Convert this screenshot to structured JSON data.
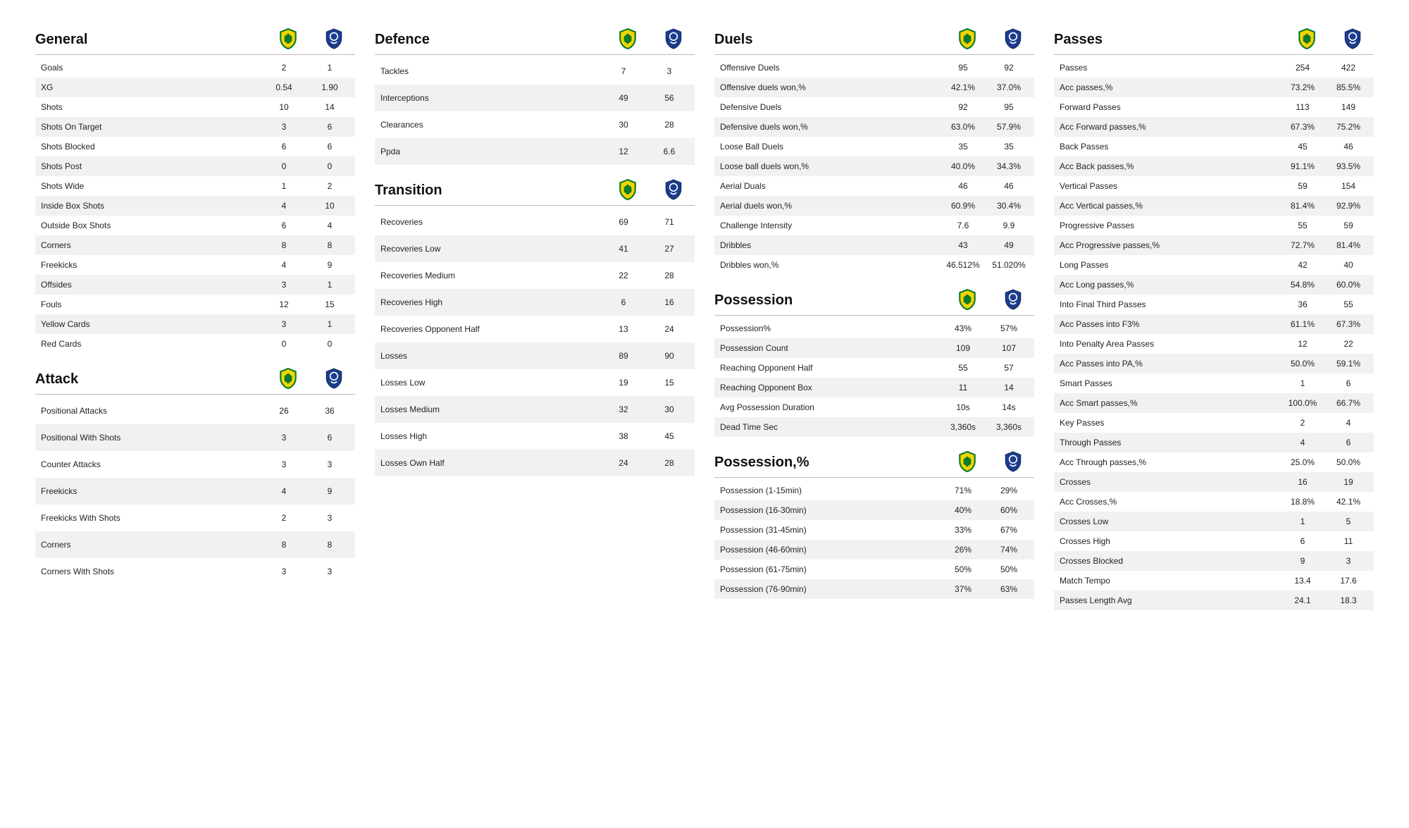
{
  "teams": {
    "home": {
      "name": "Norwich",
      "colors": [
        "#f5d400",
        "#0a7a2c"
      ]
    },
    "away": {
      "name": "Everton",
      "colors": [
        "#1b3d8f",
        "#ffffff"
      ]
    }
  },
  "sections": {
    "general": {
      "title": "General",
      "rows": [
        {
          "label": "Goals",
          "home": "2",
          "away": "1"
        },
        {
          "label": "XG",
          "home": "0.54",
          "away": "1.90"
        },
        {
          "label": "Shots",
          "home": "10",
          "away": "14"
        },
        {
          "label": "Shots On Target",
          "home": "3",
          "away": "6"
        },
        {
          "label": "Shots Blocked",
          "home": "6",
          "away": "6"
        },
        {
          "label": "Shots Post",
          "home": "0",
          "away": "0"
        },
        {
          "label": "Shots Wide",
          "home": "1",
          "away": "2"
        },
        {
          "label": "Inside Box Shots",
          "home": "4",
          "away": "10"
        },
        {
          "label": "Outside Box Shots",
          "home": "6",
          "away": "4"
        },
        {
          "label": "Corners",
          "home": "8",
          "away": "8"
        },
        {
          "label": "Freekicks",
          "home": "4",
          "away": "9"
        },
        {
          "label": "Offsides",
          "home": "3",
          "away": "1"
        },
        {
          "label": "Fouls",
          "home": "12",
          "away": "15"
        },
        {
          "label": "Yellow Cards",
          "home": "3",
          "away": "1"
        },
        {
          "label": "Red Cards",
          "home": "0",
          "away": "0"
        }
      ]
    },
    "attack": {
      "title": "Attack",
      "rows": [
        {
          "label": "Positional Attacks",
          "home": "26",
          "away": "36"
        },
        {
          "label": "Positional With Shots",
          "home": "3",
          "away": "6"
        },
        {
          "label": "Counter Attacks",
          "home": "3",
          "away": "3"
        },
        {
          "label": "Freekicks",
          "home": "4",
          "away": "9"
        },
        {
          "label": "Freekicks With Shots",
          "home": "2",
          "away": "3"
        },
        {
          "label": "Corners",
          "home": "8",
          "away": "8"
        },
        {
          "label": "Corners With Shots",
          "home": "3",
          "away": "3"
        }
      ]
    },
    "defence": {
      "title": "Defence",
      "rows": [
        {
          "label": "Tackles",
          "home": "7",
          "away": "3"
        },
        {
          "label": "Interceptions",
          "home": "49",
          "away": "56"
        },
        {
          "label": "Clearances",
          "home": "30",
          "away": "28"
        },
        {
          "label": "Ppda",
          "home": "12",
          "away": "6.6"
        }
      ]
    },
    "transition": {
      "title": "Transition",
      "rows": [
        {
          "label": "Recoveries",
          "home": "69",
          "away": "71"
        },
        {
          "label": "Recoveries Low",
          "home": "41",
          "away": "27"
        },
        {
          "label": "Recoveries Medium",
          "home": "22",
          "away": "28"
        },
        {
          "label": "Recoveries High",
          "home": "6",
          "away": "16"
        },
        {
          "label": "Recoveries Opponent Half",
          "home": "13",
          "away": "24"
        },
        {
          "label": "Losses",
          "home": "89",
          "away": "90"
        },
        {
          "label": "Losses Low",
          "home": "19",
          "away": "15"
        },
        {
          "label": "Losses Medium",
          "home": "32",
          "away": "30"
        },
        {
          "label": "Losses High",
          "home": "38",
          "away": "45"
        },
        {
          "label": "Losses Own Half",
          "home": "24",
          "away": "28"
        }
      ]
    },
    "duels": {
      "title": "Duels",
      "rows": [
        {
          "label": "Offensive Duels",
          "home": "95",
          "away": "92"
        },
        {
          "label": "Offensive duels won,%",
          "home": "42.1%",
          "away": "37.0%"
        },
        {
          "label": "Defensive Duels",
          "home": "92",
          "away": "95"
        },
        {
          "label": "Defensive duels won,%",
          "home": "63.0%",
          "away": "57.9%"
        },
        {
          "label": "Loose Ball Duels",
          "home": "35",
          "away": "35"
        },
        {
          "label": "Loose ball duels won,%",
          "home": "40.0%",
          "away": "34.3%"
        },
        {
          "label": "Aerial Duals",
          "home": "46",
          "away": "46"
        },
        {
          "label": "Aerial duels won,%",
          "home": "60.9%",
          "away": "30.4%"
        },
        {
          "label": "Challenge Intensity",
          "home": "7.6",
          "away": "9.9"
        },
        {
          "label": "Dribbles",
          "home": "43",
          "away": "49"
        },
        {
          "label": "Dribbles won,%",
          "home": "46.512%",
          "away": "51.020%"
        }
      ]
    },
    "possession": {
      "title": "Possession",
      "rows": [
        {
          "label": "Possession%",
          "home": "43%",
          "away": "57%"
        },
        {
          "label": "Possession Count",
          "home": "109",
          "away": "107"
        },
        {
          "label": "Reaching Opponent Half",
          "home": "55",
          "away": "57"
        },
        {
          "label": "Reaching Opponent Box",
          "home": "11",
          "away": "14"
        },
        {
          "label": "Avg Possession Duration",
          "home": "10s",
          "away": "14s"
        },
        {
          "label": "Dead Time Sec",
          "home": "3,360s",
          "away": "3,360s"
        }
      ]
    },
    "possession_pct": {
      "title": "Possession,%",
      "rows": [
        {
          "label": "Possession (1-15min)",
          "home": "71%",
          "away": "29%"
        },
        {
          "label": "Possession (16-30min)",
          "home": "40%",
          "away": "60%"
        },
        {
          "label": "Possession (31-45min)",
          "home": "33%",
          "away": "67%"
        },
        {
          "label": "Possession (46-60min)",
          "home": "26%",
          "away": "74%"
        },
        {
          "label": "Possession (61-75min)",
          "home": "50%",
          "away": "50%"
        },
        {
          "label": "Possession (76-90min)",
          "home": "37%",
          "away": "63%"
        }
      ]
    },
    "passes": {
      "title": "Passes",
      "rows": [
        {
          "label": "Passes",
          "home": "254",
          "away": "422"
        },
        {
          "label": "Acc passes,%",
          "home": "73.2%",
          "away": "85.5%"
        },
        {
          "label": "Forward Passes",
          "home": "113",
          "away": "149"
        },
        {
          "label": "Acc Forward passes,%",
          "home": "67.3%",
          "away": "75.2%"
        },
        {
          "label": "Back Passes",
          "home": "45",
          "away": "46"
        },
        {
          "label": "Acc Back passes,%",
          "home": "91.1%",
          "away": "93.5%"
        },
        {
          "label": "Vertical Passes",
          "home": "59",
          "away": "154"
        },
        {
          "label": "Acc Vertical passes,%",
          "home": "81.4%",
          "away": "92.9%"
        },
        {
          "label": "Progressive Passes",
          "home": "55",
          "away": "59"
        },
        {
          "label": "Acc Progressive passes,%",
          "home": "72.7%",
          "away": "81.4%"
        },
        {
          "label": "Long Passes",
          "home": "42",
          "away": "40"
        },
        {
          "label": "Acc Long passes,%",
          "home": "54.8%",
          "away": "60.0%"
        },
        {
          "label": "Into Final Third Passes",
          "home": "36",
          "away": "55"
        },
        {
          "label": "Acc Passes into F3%",
          "home": "61.1%",
          "away": "67.3%"
        },
        {
          "label": "Into Penalty Area Passes",
          "home": "12",
          "away": "22"
        },
        {
          "label": "Acc Passes into PA,%",
          "home": "50.0%",
          "away": "59.1%"
        },
        {
          "label": "Smart Passes",
          "home": "1",
          "away": "6"
        },
        {
          "label": "Acc Smart passes,%",
          "home": "100.0%",
          "away": "66.7%"
        },
        {
          "label": "Key Passes",
          "home": "2",
          "away": "4"
        },
        {
          "label": "Through Passes",
          "home": "4",
          "away": "6"
        },
        {
          "label": "Acc Through passes,%",
          "home": "25.0%",
          "away": "50.0%"
        },
        {
          "label": "Crosses",
          "home": "16",
          "away": "19"
        },
        {
          "label": "Acc Crosses,%",
          "home": "18.8%",
          "away": "42.1%"
        },
        {
          "label": "Crosses Low",
          "home": "1",
          "away": "5"
        },
        {
          "label": "Crosses High",
          "home": "6",
          "away": "11"
        },
        {
          "label": "Crosses Blocked",
          "home": "9",
          "away": "3"
        },
        {
          "label": "Match Tempo",
          "home": "13.4",
          "away": "17.6"
        },
        {
          "label": "Passes Length Avg",
          "home": "24.1",
          "away": "18.3"
        }
      ]
    }
  }
}
